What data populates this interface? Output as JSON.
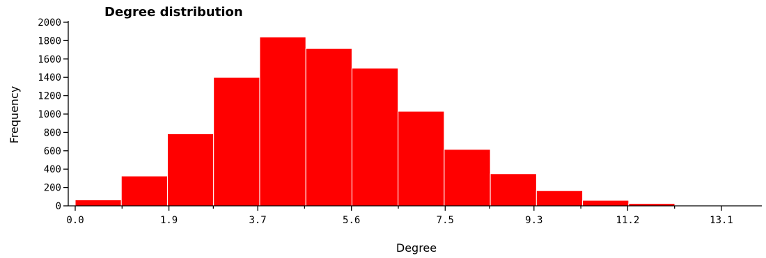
{
  "chart_data": {
    "type": "bar",
    "title": "Degree distribution",
    "xlabel": "Degree",
    "ylabel": "Frequency",
    "xlim": [
      0.0,
      13.1
    ],
    "ylim": [
      0,
      2000
    ],
    "bin_width": 0.935,
    "x_ticks": [
      "0.0",
      "1.9",
      "3.7",
      "5.6",
      "7.5",
      "9.3",
      "11.2",
      "13.1"
    ],
    "y_ticks": [
      0,
      200,
      400,
      600,
      800,
      1000,
      1200,
      1400,
      1600,
      1800,
      2000
    ],
    "series": [
      {
        "values": [
          65,
          325,
          785,
          1400,
          1840,
          1715,
          1500,
          1030,
          615,
          350,
          165,
          60,
          25,
          5
        ]
      }
    ],
    "bar_color": "#ff0000",
    "grid": false
  }
}
